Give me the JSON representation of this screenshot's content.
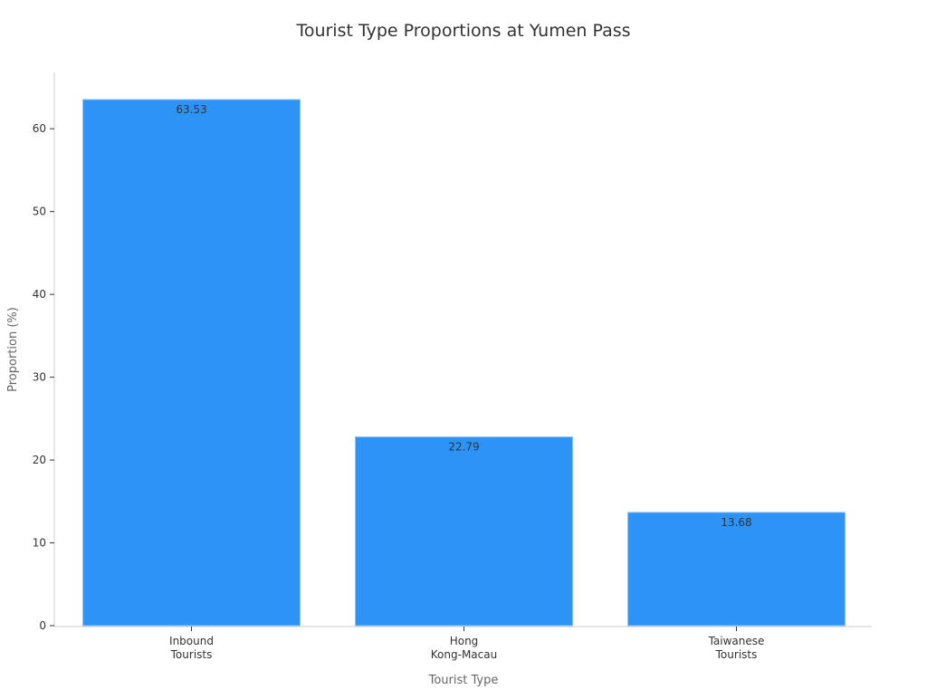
{
  "chart_data": {
    "type": "bar",
    "title": "Tourist Type Proportions at Yumen Pass",
    "xlabel": "Tourist Type",
    "ylabel": "Proportion (%)",
    "categories": [
      [
        "Inbound",
        "Tourists"
      ],
      [
        "Hong",
        "Kong-Macau"
      ],
      [
        "Taiwanese",
        "Tourists"
      ]
    ],
    "values": [
      63.53,
      22.79,
      13.68
    ],
    "data_labels": [
      "63.53",
      "22.79",
      "13.68"
    ],
    "yticks": [
      0,
      10,
      20,
      30,
      40,
      50,
      60
    ],
    "ylim": [
      0,
      66.8
    ],
    "grid": false,
    "legend": "none",
    "colors": {
      "bar": "#2e93f7",
      "bar_edge": "#8cc4fb",
      "axis": "#cccccc",
      "text": "#333333",
      "label": "#666666"
    }
  }
}
